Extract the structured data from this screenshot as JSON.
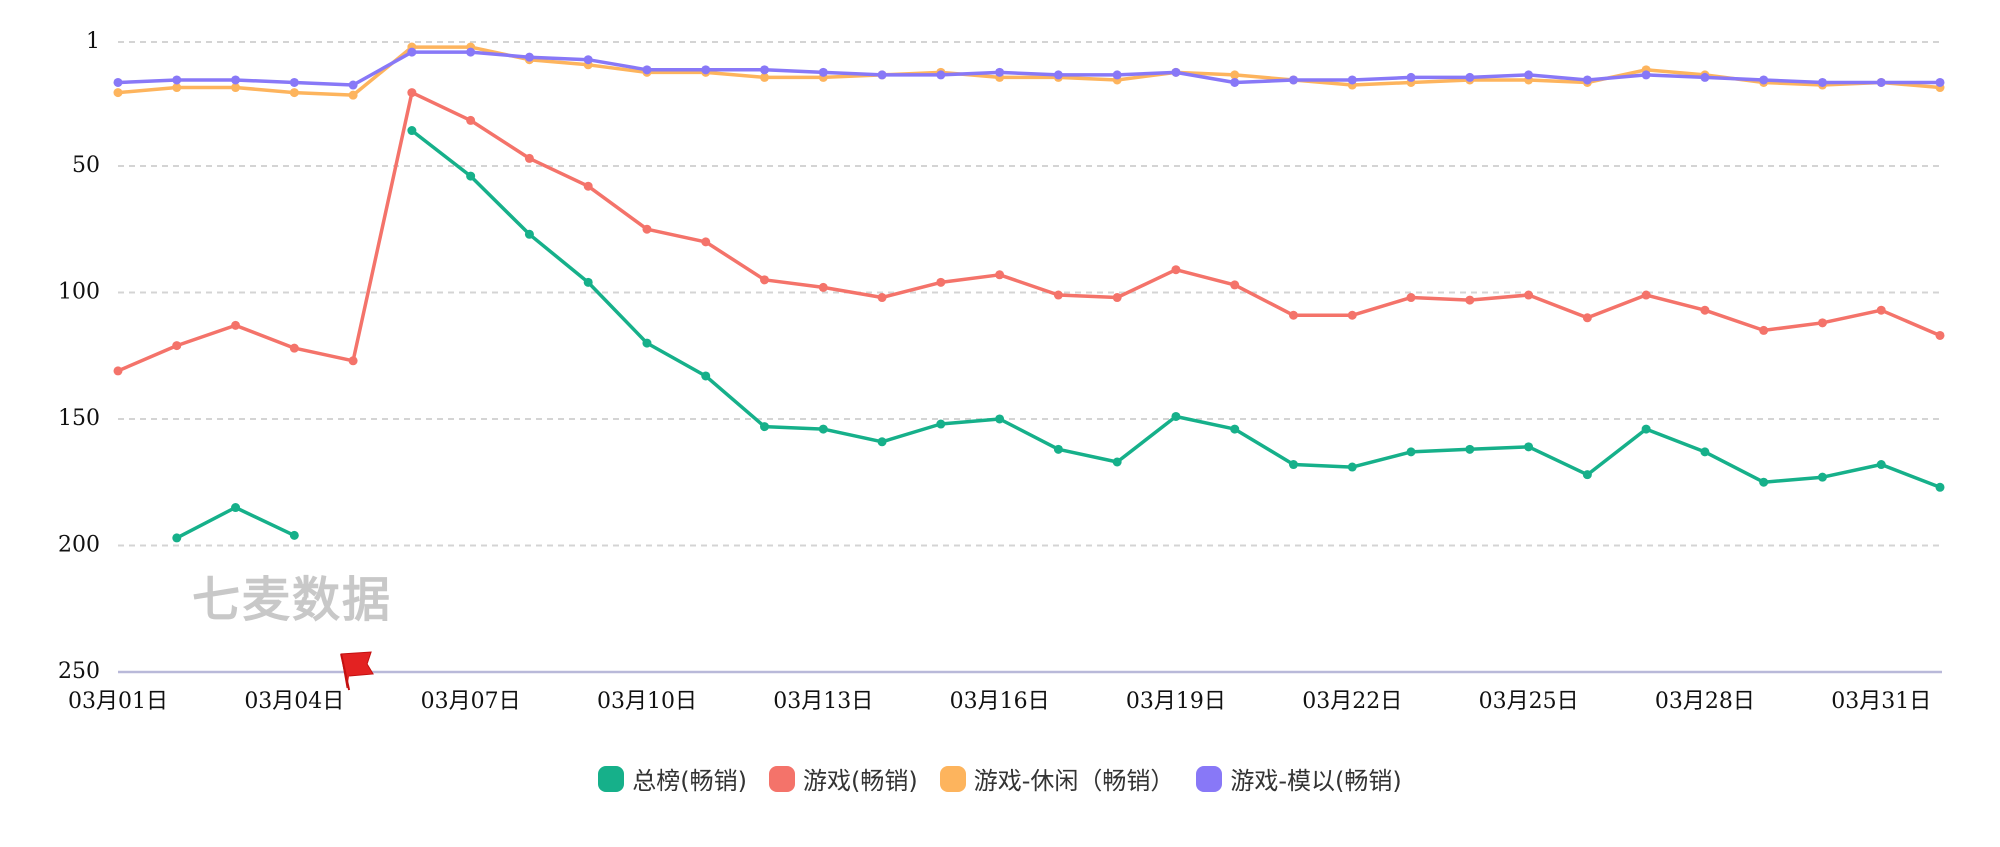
{
  "watermark": "七麦数据",
  "chart_data": {
    "type": "line",
    "y_reversed": true,
    "ylim": [
      1,
      250
    ],
    "yticks": [
      1,
      50,
      100,
      150,
      200,
      250
    ],
    "grid": true,
    "legend_position": "bottom",
    "x": [
      "03月01日",
      "03月02日",
      "03月03日",
      "03月04日",
      "03月05日",
      "03月06日",
      "03月07日",
      "03月08日",
      "03月09日",
      "03月10日",
      "03月11日",
      "03月12日",
      "03月13日",
      "03月14日",
      "03月15日",
      "03月16日",
      "03月17日",
      "03月18日",
      "03月19日",
      "03月20日",
      "03月21日",
      "03月22日",
      "03月23日",
      "03月24日",
      "03月25日",
      "03月26日",
      "03月27日",
      "03月28日",
      "03月29日",
      "03月30日",
      "03月31日",
      "04月01日"
    ],
    "xtick_labels": [
      "03月01日",
      "03月04日",
      "03月07日",
      "03月10日",
      "03月13日",
      "03月16日",
      "03月19日",
      "03月22日",
      "03月25日",
      "03月28日",
      "03月31日"
    ],
    "xtick_indices": [
      0,
      3,
      6,
      9,
      12,
      15,
      18,
      21,
      24,
      27,
      30
    ],
    "flag_index": 4,
    "series": [
      {
        "name": "总榜(畅销)",
        "color": "#16b08a",
        "values": [
          null,
          197,
          185,
          196,
          null,
          36,
          54,
          77,
          96,
          120,
          133,
          153,
          154,
          159,
          152,
          150,
          162,
          167,
          149,
          154,
          168,
          169,
          163,
          162,
          161,
          172,
          154,
          163,
          175,
          173,
          168,
          177
        ]
      },
      {
        "name": "游戏(畅销)",
        "color": "#f4736a",
        "values": [
          131,
          121,
          113,
          122,
          127,
          21,
          32,
          47,
          58,
          75,
          80,
          95,
          98,
          102,
          96,
          93,
          101,
          102,
          91,
          97,
          109,
          109,
          102,
          103,
          101,
          110,
          101,
          107,
          115,
          112,
          107,
          117
        ]
      },
      {
        "name": "游戏-休闲（畅销）",
        "color": "#fdb45d",
        "values": [
          21,
          19,
          19,
          21,
          22,
          3,
          3,
          8,
          10,
          13,
          13,
          15,
          15,
          14,
          13,
          15,
          15,
          16,
          13,
          14,
          16,
          18,
          17,
          16,
          16,
          17,
          12,
          14,
          17,
          18,
          17,
          19
        ]
      },
      {
        "name": "游戏-模以(畅销)",
        "color": "#8878f7",
        "values": [
          17,
          16,
          16,
          17,
          18,
          5,
          5,
          7,
          8,
          12,
          12,
          12,
          13,
          14,
          14,
          13,
          14,
          14,
          13,
          17,
          16,
          16,
          15,
          15,
          14,
          16,
          14,
          15,
          16,
          17,
          17,
          17
        ]
      }
    ]
  }
}
